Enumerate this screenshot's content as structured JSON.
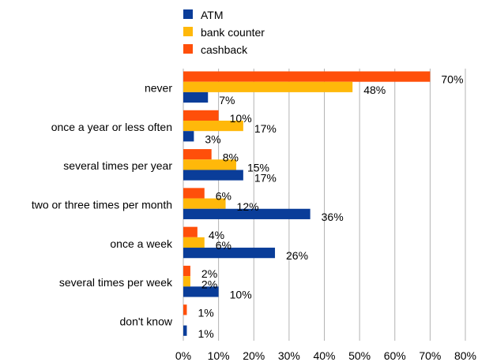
{
  "chart_data": {
    "type": "bar",
    "orientation": "horizontal",
    "categories": [
      "never",
      "once a year or less often",
      "several times per year",
      "two or three times per month",
      "once a week",
      "several times per week",
      "don't know"
    ],
    "series": [
      {
        "name": "cashback",
        "color": "#ff4f0a",
        "values": [
          70,
          10,
          8,
          6,
          4,
          2,
          1
        ]
      },
      {
        "name": "bank counter",
        "color": "#ffb80a",
        "values": [
          48,
          17,
          15,
          12,
          6,
          2,
          0
        ]
      },
      {
        "name": "ATM",
        "color": "#0a3d99",
        "values": [
          7,
          3,
          17,
          36,
          26,
          10,
          1
        ]
      }
    ],
    "data_labels": [
      [
        "70%",
        "48%",
        "7%"
      ],
      [
        "10%",
        "17%",
        "3%"
      ],
      [
        "8%",
        "15%",
        "17%"
      ],
      [
        "6%",
        "12%",
        "36%"
      ],
      [
        "4%",
        "6%",
        "26%"
      ],
      [
        "2%",
        "2%",
        "10%"
      ],
      [
        "1%",
        "",
        "1%"
      ]
    ],
    "legend": {
      "position": "top",
      "entries": [
        {
          "label": "ATM",
          "color": "#0a3d99"
        },
        {
          "label": "bank counter",
          "color": "#ffb80a"
        },
        {
          "label": "cashback",
          "color": "#ff4f0a"
        }
      ]
    },
    "xlim": [
      0,
      80
    ],
    "xticks": [
      "0%",
      "10%",
      "20%",
      "30%",
      "40%",
      "50%",
      "60%",
      "70%",
      "80%"
    ],
    "grid": true,
    "title": "",
    "xlabel": "",
    "ylabel": ""
  }
}
